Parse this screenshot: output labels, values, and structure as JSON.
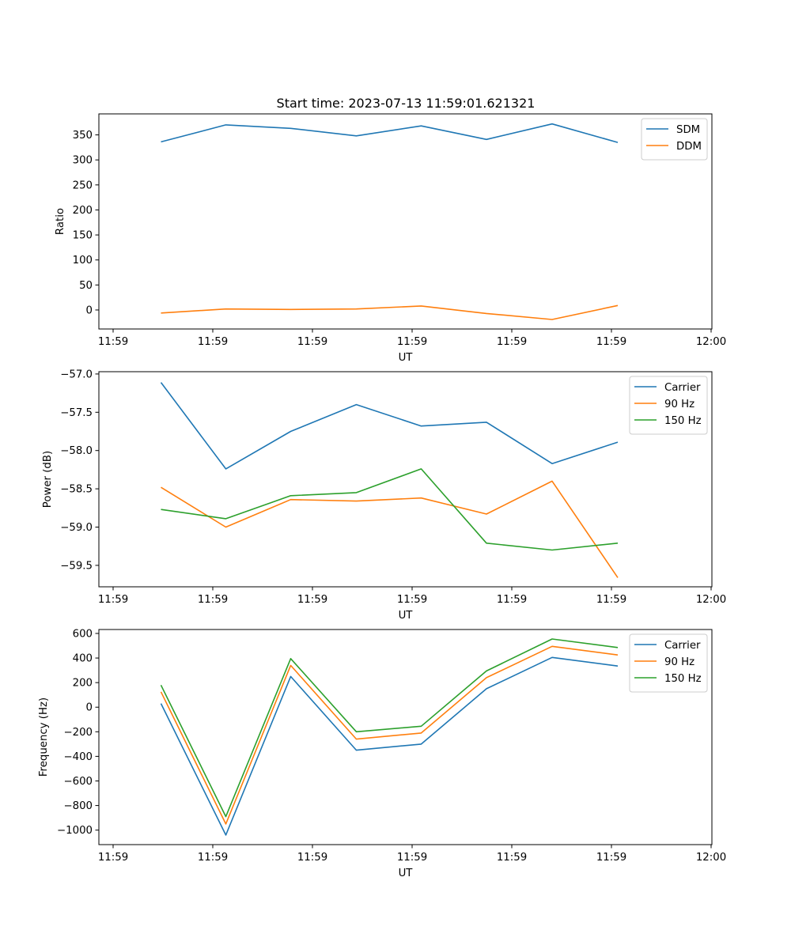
{
  "figure": {
    "title": "Start time: 2023-07-13 11:59:01.621321"
  },
  "colors": {
    "blue": "#1f77b4",
    "orange": "#ff7f0e",
    "green": "#2ca02c"
  },
  "chart_data": [
    {
      "type": "line",
      "title": "Start time: 2023-07-13 11:59:01.621321",
      "xlabel": "UT",
      "ylabel": "Ratio",
      "x_tick_labels": [
        "11:59",
        "11:59",
        "11:59",
        "11:59",
        "11:59",
        "11:59",
        "12:00"
      ],
      "x_index": [
        0,
        1,
        2,
        3,
        4,
        5,
        6,
        7
      ],
      "ylim": [
        -38,
        392
      ],
      "y_ticks": [
        0,
        50,
        100,
        150,
        200,
        250,
        300,
        350
      ],
      "legend": "top-right",
      "series": [
        {
          "name": "SDM",
          "color": "#1f77b4",
          "values": [
            336,
            370,
            363,
            348,
            368,
            341,
            372,
            335
          ]
        },
        {
          "name": "DDM",
          "color": "#ff7f0e",
          "values": [
            -6,
            2,
            1,
            2,
            8,
            -7,
            -19,
            9
          ]
        }
      ]
    },
    {
      "type": "line",
      "xlabel": "UT",
      "ylabel": "Power (dB)",
      "x_tick_labels": [
        "11:59",
        "11:59",
        "11:59",
        "11:59",
        "11:59",
        "11:59",
        "12:00"
      ],
      "x_index": [
        0,
        1,
        2,
        3,
        4,
        5,
        6,
        7
      ],
      "ylim": [
        -59.78,
        -56.97
      ],
      "y_ticks": [
        -59.5,
        -59.0,
        -58.5,
        -58.0,
        -57.5,
        -57.0
      ],
      "y_tick_labels": [
        "−59.5",
        "−59.0",
        "−58.5",
        "−58.0",
        "−57.5",
        "−57.0"
      ],
      "legend": "top-right",
      "series": [
        {
          "name": "Carrier",
          "color": "#1f77b4",
          "values": [
            -57.11,
            -58.24,
            -57.75,
            -57.4,
            -57.68,
            -57.63,
            -58.17,
            -57.89
          ]
        },
        {
          "name": "90 Hz",
          "color": "#ff7f0e",
          "values": [
            -58.48,
            -59.0,
            -58.64,
            -58.66,
            -58.62,
            -58.83,
            -58.4,
            -59.66
          ]
        },
        {
          "name": "150 Hz",
          "color": "#2ca02c",
          "values": [
            -58.77,
            -58.89,
            -58.59,
            -58.55,
            -58.24,
            -59.21,
            -59.3,
            -59.21
          ]
        }
      ]
    },
    {
      "type": "line",
      "xlabel": "UT",
      "ylabel": "Frequency (Hz)",
      "x_tick_labels": [
        "11:59",
        "11:59",
        "11:59",
        "11:59",
        "11:59",
        "11:59",
        "12:00"
      ],
      "x_index": [
        0,
        1,
        2,
        3,
        4,
        5,
        6,
        7
      ],
      "ylim": [
        -1118,
        632
      ],
      "y_ticks": [
        -1000,
        -800,
        -600,
        -400,
        -200,
        0,
        200,
        400,
        600
      ],
      "y_tick_labels": [
        "−1000",
        "−800",
        "−600",
        "−400",
        "−200",
        "0",
        "200",
        "400",
        "600"
      ],
      "legend": "top-right",
      "series": [
        {
          "name": "Carrier",
          "color": "#1f77b4",
          "values": [
            30,
            -1040,
            250,
            -350,
            -300,
            150,
            405,
            335
          ]
        },
        {
          "name": "90 Hz",
          "color": "#ff7f0e",
          "values": [
            125,
            -950,
            340,
            -260,
            -210,
            240,
            495,
            425
          ]
        },
        {
          "name": "150 Hz",
          "color": "#2ca02c",
          "values": [
            180,
            -890,
            395,
            -200,
            -155,
            295,
            555,
            485
          ]
        }
      ]
    }
  ]
}
